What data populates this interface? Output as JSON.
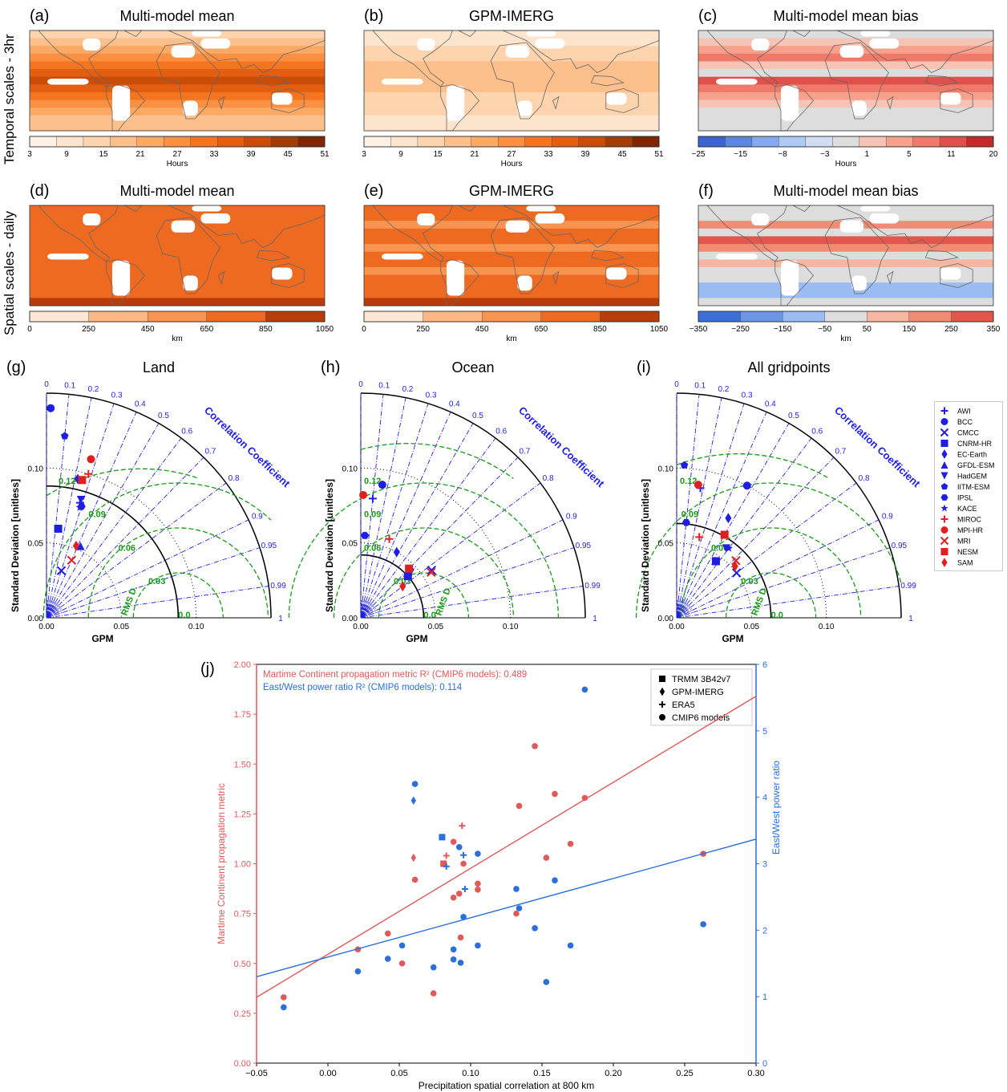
{
  "row_labels": {
    "temporal": "Temporal scales - 3hr",
    "spatial": "Spatial scales - daily"
  },
  "maps": [
    {
      "label": "(a)",
      "title": "Multi-model mean",
      "cbar_ticks": [
        "3",
        "9",
        "15",
        "21",
        "27",
        "33",
        "39",
        "45",
        "51"
      ],
      "cbar_label": "Hours",
      "cmap": [
        "#fdf0e4",
        "#fde4cc",
        "#fdd4ad",
        "#fdc08c",
        "#fca965",
        "#fb8f42",
        "#f47520",
        "#e35e10",
        "#c94c08",
        "#a33d06",
        "#7f2704"
      ],
      "land": "#ffffff"
    },
    {
      "label": "(b)",
      "title": "GPM-IMERG",
      "cbar_ticks": [
        "3",
        "9",
        "15",
        "21",
        "27",
        "33",
        "39",
        "45",
        "51"
      ],
      "cbar_label": "Hours",
      "cmap": [
        "#fdf0e4",
        "#fde4cc",
        "#fdd4ad",
        "#fdc08c",
        "#fca965",
        "#fb8f42",
        "#f47520",
        "#e35e10",
        "#c94c08",
        "#a33d06",
        "#7f2704"
      ]
    },
    {
      "label": "(c)",
      "title": "Multi-model mean bias",
      "cbar_ticks": [
        "−25",
        "−15",
        "−8",
        "−3",
        "1",
        "5",
        "11",
        "20"
      ],
      "cbar_label": "Hours",
      "cmap": [
        "#3b64d0",
        "#5c86e0",
        "#84a9ee",
        "#aecbf6",
        "#cfdcf2",
        "#dddddd",
        "#f6c4b4",
        "#f7a08c",
        "#ef7a6a",
        "#e0504a",
        "#c42a2a"
      ]
    },
    {
      "label": "(d)",
      "title": "Multi-model mean",
      "cbar_ticks": [
        "0",
        "250",
        "450",
        "650",
        "850",
        "1050"
      ],
      "cbar_label": "km",
      "cmap": [
        "#fde7d4",
        "#fbb784",
        "#f79450",
        "#ee6a20",
        "#b83d0c"
      ]
    },
    {
      "label": "(e)",
      "title": "GPM-IMERG",
      "cbar_ticks": [
        "0",
        "250",
        "450",
        "650",
        "850",
        "1050"
      ],
      "cbar_label": "km",
      "cmap": [
        "#fde7d4",
        "#fbb784",
        "#f79450",
        "#ee6a20",
        "#b83d0c"
      ]
    },
    {
      "label": "(f)",
      "title": "Multi-model mean bias",
      "cbar_ticks": [
        "−350",
        "−250",
        "−150",
        "−50",
        "50",
        "150",
        "250",
        "350"
      ],
      "cbar_label": "km",
      "cmap": [
        "#3d6fd8",
        "#6d95e6",
        "#9bbcf2",
        "#dddddd",
        "#f6b6a2",
        "#f08b74",
        "#e3564c"
      ]
    }
  ],
  "taylor": {
    "panels": [
      {
        "label": "(g)",
        "title": "Land"
      },
      {
        "label": "(h)",
        "title": "Ocean"
      },
      {
        "label": "(i)",
        "title": "All gridpoints"
      }
    ],
    "ylabel": "Standard Deviation [unitless]",
    "xlabel": "GPM",
    "axis_ticks": [
      "0.00",
      "0.05",
      "0.10"
    ],
    "corr_label": "Correlation Coefficient",
    "corr_ticks": [
      "0",
      "0.1",
      "0.2",
      "0.3",
      "0.4",
      "0.5",
      "0.6",
      "0.7",
      "0.8",
      "0.9",
      "0.95",
      "0.99",
      "1"
    ],
    "rms_label": "RMS D.",
    "rms_ticks": [
      "0.12",
      "0.09",
      "0.06",
      "0.03",
      "0.0"
    ],
    "legend": [
      {
        "name": "AWI",
        "marker": "plus",
        "color": "#1f1fe0"
      },
      {
        "name": "BCC",
        "marker": "circle",
        "color": "#1f1fe0"
      },
      {
        "name": "CMCC",
        "marker": "x",
        "color": "#1f1fe0"
      },
      {
        "name": "CNRM-HR",
        "marker": "square",
        "color": "#1f1fe0"
      },
      {
        "name": "EC-Earth",
        "marker": "diamond",
        "color": "#1f1fe0"
      },
      {
        "name": "GFDL-ESM",
        "marker": "triangle-up",
        "color": "#1f1fe0"
      },
      {
        "name": "HadGEM",
        "marker": "triangle-down",
        "color": "#1f1fe0"
      },
      {
        "name": "IITM-ESM",
        "marker": "pentagon",
        "color": "#1f1fe0"
      },
      {
        "name": "IPSL",
        "marker": "hexagon",
        "color": "#1f1fe0"
      },
      {
        "name": "KACE",
        "marker": "star",
        "color": "#1f1fe0"
      },
      {
        "name": "MIROC",
        "marker": "plus",
        "color": "#e02020"
      },
      {
        "name": "MPI-HR",
        "marker": "circle",
        "color": "#e02020"
      },
      {
        "name": "MRI",
        "marker": "x",
        "color": "#e02020"
      },
      {
        "name": "NESM",
        "marker": "square",
        "color": "#e02020"
      },
      {
        "name": "SAM",
        "marker": "diamond",
        "color": "#e02020"
      }
    ]
  },
  "chart_data": [
    {
      "type": "scatter",
      "panel": "(g)",
      "title": "Land",
      "ylabel": "Standard Deviation [unitless]",
      "xlabel": "GPM",
      "ref_std": 0.088,
      "points": [
        {
          "model": "AWI",
          "std": 0.08,
          "corr": 0.28
        },
        {
          "model": "BCC",
          "std": 0.14,
          "corr": 0.02
        },
        {
          "model": "CMCC",
          "std": 0.033,
          "corr": 0.3
        },
        {
          "model": "CNRM-HR",
          "std": 0.06,
          "corr": 0.13
        },
        {
          "model": "EC-Earth",
          "std": 0.095,
          "corr": 0.22
        },
        {
          "model": "GFDL-ESM",
          "std": 0.053,
          "corr": 0.43
        },
        {
          "model": "HadGEM",
          "std": 0.082,
          "corr": 0.28
        },
        {
          "model": "IITM-ESM",
          "std": 0.122,
          "corr": 0.1
        },
        {
          "model": "IPSL",
          "std": 0.078,
          "corr": 0.3
        },
        {
          "model": "KACE",
          "std": 0.077,
          "corr": 0.29
        },
        {
          "model": "MIROC",
          "std": 0.1,
          "corr": 0.28
        },
        {
          "model": "MPI-HR",
          "std": 0.11,
          "corr": 0.27
        },
        {
          "model": "MRI",
          "std": 0.042,
          "corr": 0.4
        },
        {
          "model": "NESM",
          "std": 0.095,
          "corr": 0.25
        },
        {
          "model": "SAM",
          "std": 0.052,
          "corr": 0.38
        }
      ]
    },
    {
      "type": "scatter",
      "panel": "(h)",
      "title": "Ocean",
      "ylabel": "Standard Deviation [unitless]",
      "xlabel": "GPM",
      "ref_std": 0.042,
      "points": [
        {
          "model": "AWI",
          "std": 0.08,
          "corr": 0.1
        },
        {
          "model": "BCC",
          "std": 0.09,
          "corr": 0.16
        },
        {
          "model": "CMCC",
          "std": 0.057,
          "corr": 0.83
        },
        {
          "model": "CNRM-HR",
          "std": 0.042,
          "corr": 0.75
        },
        {
          "model": "EC-Earth",
          "std": 0.05,
          "corr": 0.48
        },
        {
          "model": "GFDL-ESM",
          "std": 0.043,
          "corr": 0.72
        },
        {
          "model": "HadGEM",
          "std": 0.045,
          "corr": 0.74
        },
        {
          "model": "IITM-ESM",
          "std": 0.055,
          "corr": 0.05
        },
        {
          "model": "IPSL",
          "std": 0.055,
          "corr": 0.05
        },
        {
          "model": "KACE",
          "std": 0.046,
          "corr": 0.7
        },
        {
          "model": "MIROC",
          "std": 0.056,
          "corr": 0.34
        },
        {
          "model": "MPI-HR",
          "std": 0.082,
          "corr": 0.02
        },
        {
          "model": "MRI",
          "std": 0.056,
          "corr": 0.84
        },
        {
          "model": "NESM",
          "std": 0.046,
          "corr": 0.7
        },
        {
          "model": "SAM",
          "std": 0.035,
          "corr": 0.8
        }
      ]
    },
    {
      "type": "scatter",
      "panel": "(i)",
      "title": "All gridpoints",
      "ylabel": "Standard Deviation [unitless]",
      "xlabel": "GPM",
      "ref_std": 0.063,
      "points": [
        {
          "model": "AWI",
          "std": 0.088,
          "corr": 0.18
        },
        {
          "model": "BCC",
          "std": 0.1,
          "corr": 0.47
        },
        {
          "model": "CMCC",
          "std": 0.05,
          "corr": 0.8
        },
        {
          "model": "CNRM-HR",
          "std": 0.046,
          "corr": 0.57
        },
        {
          "model": "EC-Earth",
          "std": 0.075,
          "corr": 0.46
        },
        {
          "model": "GFDL-ESM",
          "std": 0.046,
          "corr": 0.56
        },
        {
          "model": "HadGEM",
          "std": 0.057,
          "corr": 0.58
        },
        {
          "model": "IITM-ESM",
          "std": 0.102,
          "corr": 0.05
        },
        {
          "model": "IPSL",
          "std": 0.064,
          "corr": 0.1
        },
        {
          "model": "KACE",
          "std": 0.058,
          "corr": 0.6
        },
        {
          "model": "MIROC",
          "std": 0.056,
          "corr": 0.27
        },
        {
          "model": "MPI-HR",
          "std": 0.09,
          "corr": 0.16
        },
        {
          "model": "MRI",
          "std": 0.055,
          "corr": 0.72
        },
        {
          "model": "NESM",
          "std": 0.064,
          "corr": 0.5
        },
        {
          "model": "SAM",
          "std": 0.052,
          "corr": 0.75
        }
      ]
    },
    {
      "type": "scatter",
      "panel": "(j)",
      "xlabel": "Precipitation spatial correlation at 800 km",
      "ylabel": "Martime Continent propagation metric",
      "ylabel_right": "East/West power ratio",
      "xlim": [
        -0.05,
        0.3
      ],
      "ylim": [
        0.0,
        2.0
      ],
      "ylim_right": [
        0,
        6
      ],
      "xticks": [
        "−0.05",
        "0.00",
        "0.05",
        "0.10",
        "0.15",
        "0.20",
        "0.25",
        "0.30"
      ],
      "yticks": [
        "0.00",
        "0.25",
        "0.50",
        "0.75",
        "1.00",
        "1.25",
        "1.50",
        "1.75",
        "2.00"
      ],
      "yticks_right": [
        "0",
        "1",
        "2",
        "3",
        "4",
        "5",
        "6"
      ],
      "annotation_red": "Martime Continent propagation metric R² (CMIP6 models): 0.489",
      "annotation_blue": "East/West power ratio R² (CMIP6 models): 0.114",
      "legend": [
        {
          "name": "TRMM 3B42v7",
          "marker": "square"
        },
        {
          "name": "GPM-IMERG",
          "marker": "diamond"
        },
        {
          "name": "ERA5",
          "marker": "plus"
        },
        {
          "name": "CMIP6 models",
          "marker": "circle"
        }
      ],
      "colors": {
        "red": "#e05a5a",
        "blue": "#2a6fdb"
      },
      "series": [
        {
          "name": "Martime Continent propagation metric",
          "axis": "left",
          "color": "red",
          "obs": [
            {
              "marker": "square",
              "x": 0.081,
              "y": 1.0
            },
            {
              "marker": "diamond",
              "x": 0.06,
              "y": 1.03
            },
            {
              "marker": "plus",
              "x": 0.094,
              "y": 1.19
            },
            {
              "marker": "plus",
              "x": 0.083,
              "y": 1.04
            }
          ],
          "points": [
            [
              -0.031,
              0.33
            ],
            [
              0.021,
              0.57
            ],
            [
              0.042,
              0.65
            ],
            [
              0.052,
              0.5
            ],
            [
              0.061,
              0.92
            ],
            [
              0.074,
              0.35
            ],
            [
              0.088,
              0.83
            ],
            [
              0.088,
              1.11
            ],
            [
              0.092,
              0.85
            ],
            [
              0.093,
              0.63
            ],
            [
              0.095,
              1.0
            ],
            [
              0.105,
              0.87
            ],
            [
              0.105,
              0.9
            ],
            [
              0.132,
              0.75
            ],
            [
              0.134,
              1.29
            ],
            [
              0.145,
              1.59
            ],
            [
              0.153,
              1.03
            ],
            [
              0.159,
              1.35
            ],
            [
              0.17,
              1.1
            ],
            [
              0.18,
              1.33
            ],
            [
              0.263,
              1.05
            ]
          ],
          "fit": [
            [
              -0.05,
              0.33
            ],
            [
              0.3,
              1.84
            ]
          ]
        },
        {
          "name": "East/West power ratio",
          "axis": "right",
          "color": "blue",
          "obs": [
            {
              "marker": "square",
              "x": 0.08,
              "y": 3.4
            },
            {
              "marker": "diamond",
              "x": 0.06,
              "y": 3.95
            },
            {
              "marker": "plus",
              "x": 0.095,
              "y": 3.13
            },
            {
              "marker": "plus",
              "x": 0.083,
              "y": 2.96
            },
            {
              "marker": "plus",
              "x": 0.096,
              "y": 2.62
            }
          ],
          "points": [
            [
              -0.031,
              0.84
            ],
            [
              0.021,
              1.38
            ],
            [
              0.042,
              1.57
            ],
            [
              0.052,
              1.77
            ],
            [
              0.061,
              4.2
            ],
            [
              0.074,
              1.44
            ],
            [
              0.088,
              1.71
            ],
            [
              0.088,
              1.56
            ],
            [
              0.092,
              3.25
            ],
            [
              0.093,
              1.51
            ],
            [
              0.095,
              2.2
            ],
            [
              0.105,
              3.15
            ],
            [
              0.105,
              1.77
            ],
            [
              0.132,
              2.62
            ],
            [
              0.134,
              2.33
            ],
            [
              0.145,
              2.03
            ],
            [
              0.153,
              1.22
            ],
            [
              0.159,
              2.75
            ],
            [
              0.17,
              1.77
            ],
            [
              0.18,
              5.62
            ],
            [
              0.263,
              2.09
            ]
          ],
          "fit": [
            [
              -0.05,
              1.3
            ],
            [
              0.3,
              3.37
            ]
          ]
        }
      ]
    }
  ]
}
